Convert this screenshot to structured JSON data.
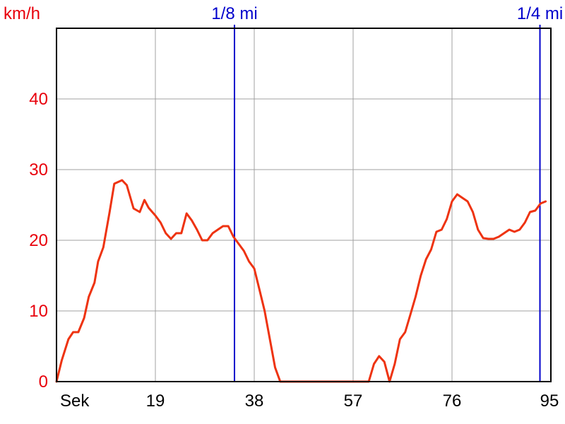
{
  "chart_data": {
    "type": "line",
    "title": "",
    "xlabel": "",
    "ylabel": "km/h",
    "first_xtick_label": "Sek",
    "xlim": [
      0,
      95
    ],
    "ylim": [
      0,
      50
    ],
    "xticks": [
      0,
      19,
      38,
      57,
      76,
      95
    ],
    "xtick_labels": [
      "Sek",
      "19",
      "38",
      "57",
      "76",
      "95"
    ],
    "yticks": [
      0,
      10,
      20,
      30,
      40
    ],
    "ytick_labels": [
      "0",
      "10",
      "20",
      "30",
      "40"
    ],
    "grid": true,
    "colors": {
      "axis_label": "#e8000b",
      "series": "#ee3311",
      "markers": "#0000cc",
      "grid": "#a0a0a0",
      "frame": "#000000",
      "xtick_text": "#000000"
    },
    "markers": [
      {
        "label": "1/8 mi",
        "x": 34.2
      },
      {
        "label": "1/4 mi",
        "x": 92.9
      }
    ],
    "series": [
      {
        "x": [
          0,
          1,
          2.3,
          3.2,
          4.2,
          5.3,
          6.2,
          7.3,
          8,
          9,
          10.2,
          11.1,
          12.6,
          13.5,
          14.8,
          16,
          16.9,
          17.7,
          18.4,
          19,
          20,
          21,
          22,
          23,
          24,
          25,
          26,
          27,
          28,
          29,
          30,
          31,
          32,
          33,
          34,
          35,
          36,
          37,
          38,
          39,
          40,
          41,
          42,
          43,
          44,
          45,
          46,
          47,
          48,
          49,
          50,
          55,
          60,
          61,
          62,
          63,
          64,
          65,
          66,
          67,
          68,
          69,
          70,
          71,
          72,
          73,
          74,
          75,
          76,
          77,
          78,
          79,
          80,
          81,
          82,
          83,
          84,
          85,
          86,
          87,
          88,
          89,
          90,
          91,
          92,
          93,
          94
        ],
        "values": [
          0,
          3,
          6,
          7,
          7,
          9,
          12,
          14,
          17,
          19,
          24,
          28,
          28.5,
          27.8,
          24.5,
          24,
          25.7,
          24.6,
          24,
          23.5,
          22.5,
          21,
          20.2,
          21,
          21,
          23.8,
          22.8,
          21.5,
          20,
          20,
          21,
          21.5,
          22,
          22,
          20.5,
          19.5,
          18.5,
          17,
          16,
          13,
          10,
          6,
          2,
          0,
          0,
          0,
          0,
          0,
          0,
          0,
          0,
          0,
          0,
          2.5,
          3.6,
          2.8,
          0,
          2.5,
          6,
          7,
          9.5,
          12,
          15,
          17.3,
          18.7,
          21.2,
          21.5,
          23,
          25.5,
          26.5,
          26,
          25.5,
          24,
          21.5,
          20.3,
          20.2,
          20.2,
          20.5,
          21,
          21.5,
          21.2,
          21.5,
          22.5,
          24,
          24.2,
          25.2,
          25.5
        ]
      }
    ]
  }
}
